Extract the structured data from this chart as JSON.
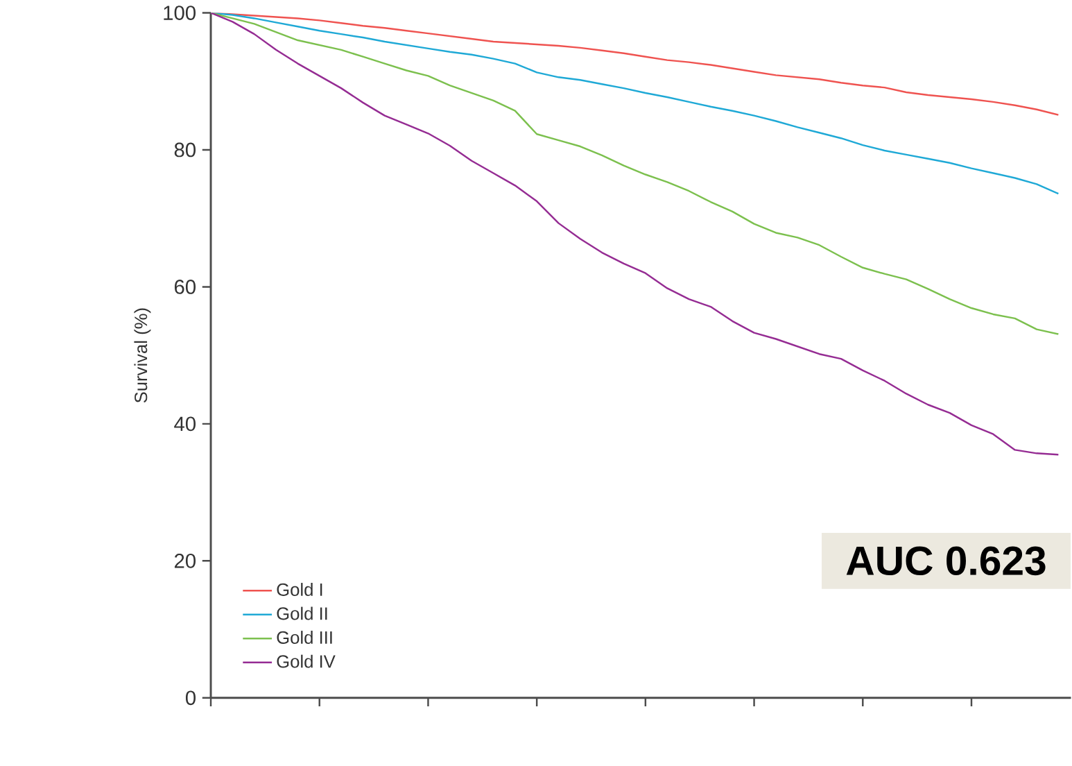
{
  "chart_data": {
    "type": "line",
    "ylabel": "Survival (%)",
    "categories": [
      null,
      null,
      null,
      null,
      null,
      null,
      null,
      null,
      null,
      null,
      null,
      null,
      null,
      null,
      null,
      null,
      null,
      null,
      null,
      null,
      null,
      null,
      null,
      null,
      null,
      null,
      null,
      null,
      null,
      null,
      null,
      null,
      null,
      null,
      null,
      null,
      null,
      null,
      null,
      null
    ],
    "series": [
      {
        "name": "Gold I",
        "color": "#ef5350",
        "values": [
          100,
          99.8,
          99.6,
          99.4,
          99.2,
          98.9,
          98.5,
          98.1,
          97.8,
          97.4,
          97.0,
          96.6,
          96.2,
          95.8,
          95.6,
          95.4,
          95.2,
          94.9,
          94.5,
          94.1,
          93.6,
          93.1,
          92.8,
          92.4,
          91.9,
          91.4,
          90.9,
          90.6,
          90.3,
          89.8,
          89.4,
          89.1,
          88.4,
          88.0,
          87.7,
          87.4,
          87.0,
          86.5,
          85.9,
          85.1
        ]
      },
      {
        "name": "Gold II",
        "color": "#1fa9d6",
        "values": [
          100,
          99.7,
          99.2,
          98.6,
          98.0,
          97.4,
          96.9,
          96.4,
          95.8,
          95.3,
          94.8,
          94.3,
          93.9,
          93.3,
          92.6,
          91.3,
          90.6,
          90.2,
          89.6,
          89.0,
          88.3,
          87.7,
          87.0,
          86.3,
          85.7,
          85.0,
          84.2,
          83.3,
          82.5,
          81.7,
          80.7,
          79.9,
          79.3,
          78.7,
          78.1,
          77.3,
          76.6,
          75.9,
          75.0,
          73.6
        ]
      },
      {
        "name": "Gold III",
        "color": "#7cc04e",
        "values": [
          100,
          99.2,
          98.4,
          97.2,
          96.0,
          95.3,
          94.6,
          93.6,
          92.6,
          91.6,
          90.8,
          89.4,
          88.3,
          87.2,
          85.7,
          82.3,
          81.4,
          80.5,
          79.2,
          77.7,
          76.4,
          75.3,
          74.0,
          72.4,
          71.0,
          69.2,
          67.9,
          67.2,
          66.1,
          64.4,
          62.8,
          61.9,
          61.1,
          59.7,
          58.2,
          56.9,
          56.0,
          55.4,
          53.8,
          53.1
        ]
      },
      {
        "name": "Gold IV",
        "color": "#952c93",
        "values": [
          100,
          98.7,
          96.9,
          94.6,
          92.6,
          90.8,
          89.0,
          86.9,
          85.0,
          83.7,
          82.4,
          80.6,
          78.4,
          76.6,
          74.8,
          72.5,
          69.3,
          67.0,
          65.0,
          63.4,
          62.0,
          59.8,
          58.2,
          57.1,
          55.0,
          53.3,
          52.4,
          51.3,
          50.2,
          49.5,
          47.8,
          46.3,
          44.4,
          42.8,
          41.6,
          39.8,
          38.5,
          36.2,
          35.7,
          35.5
        ]
      }
    ],
    "ylim": [
      0,
      100
    ],
    "yticks": [
      0,
      20,
      40,
      60,
      80,
      100
    ],
    "grid": false,
    "legend": "bottom left",
    "marker": "none",
    "line_style": "solid",
    "tick_labels": "y",
    "annotations": [
      "AUC 0.623"
    ]
  }
}
